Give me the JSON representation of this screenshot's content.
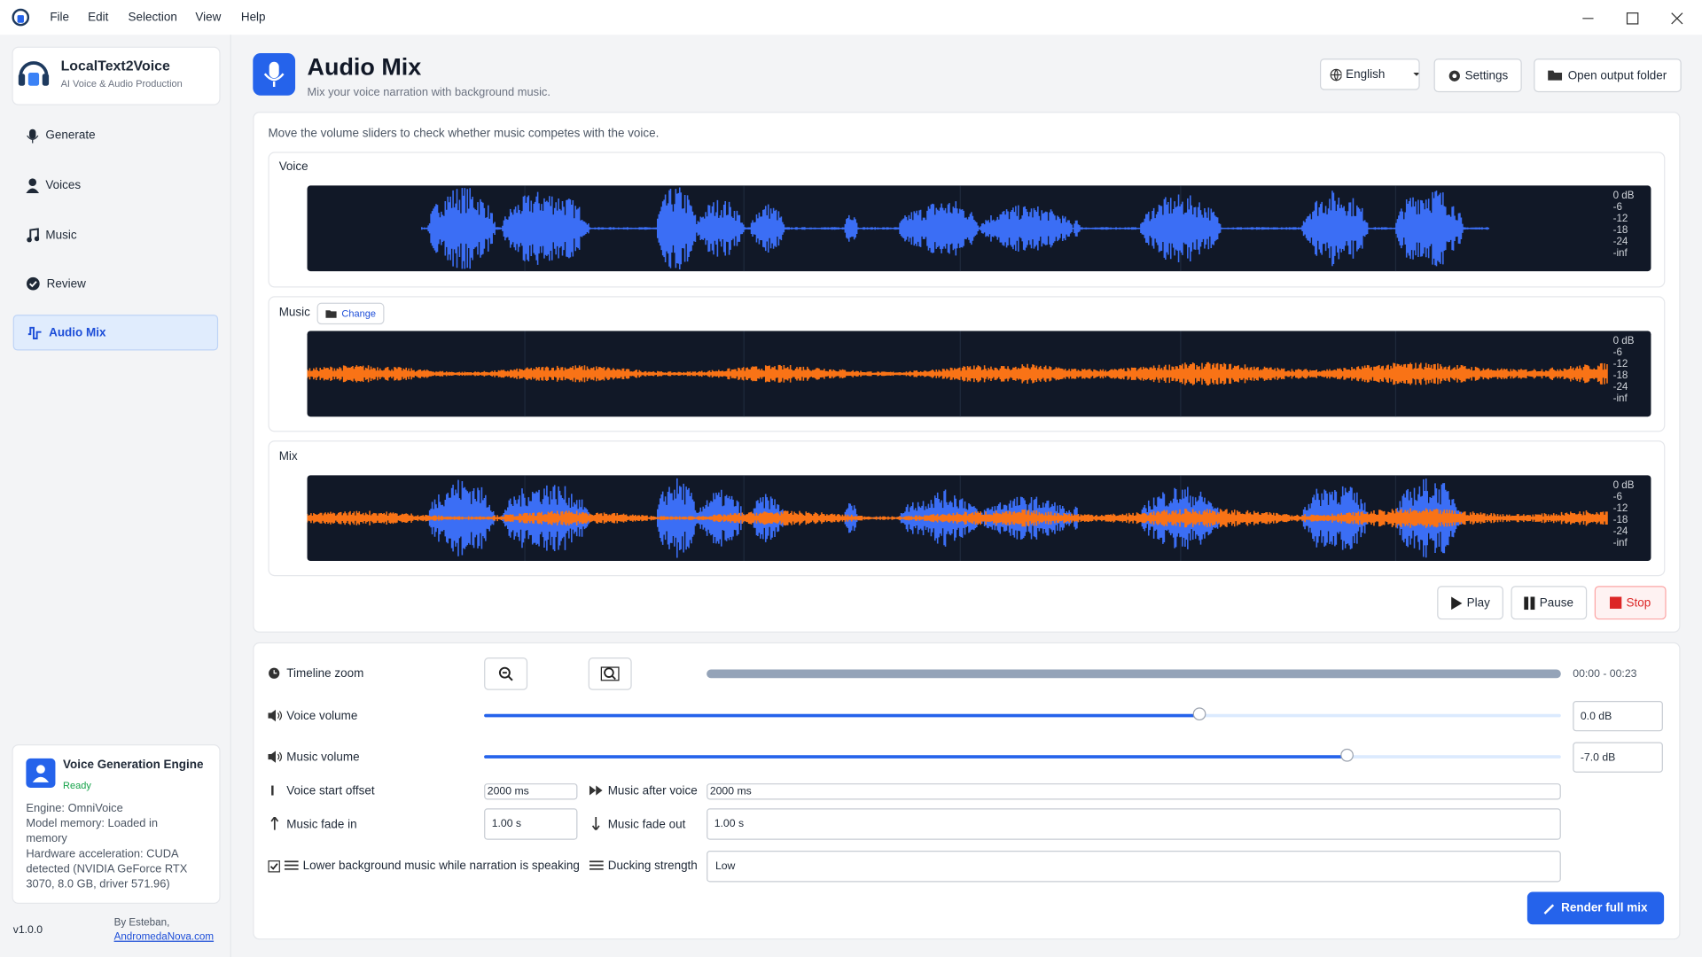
{
  "menu": [
    "File",
    "Edit",
    "Selection",
    "View",
    "Help"
  ],
  "sidebar": {
    "app_name": "LocalText2Voice",
    "app_tagline": "AI Voice & Audio Production",
    "nav": [
      "Generate",
      "Voices",
      "Music",
      "Review",
      "Audio Mix"
    ],
    "engine": {
      "title": "Voice Generation Engine",
      "status": "Ready",
      "details": [
        "Engine: OmniVoice",
        "Model memory: Loaded in memory",
        "Hardware acceleration: CUDA detected (NVIDIA GeForce RTX 3070, 8.0 GB, driver 571.96)"
      ]
    },
    "version": "v1.0.0",
    "credit": "By Esteban,",
    "link": "AndromedaNova.com"
  },
  "header": {
    "title": "Audio Mix",
    "subtitle": "Mix your voice narration with background music.",
    "language": "English",
    "settings": "Settings",
    "open_folder": "Open output folder"
  },
  "waveforms": {
    "hint": "Move the volume sliders to check whether music competes with the voice.",
    "db_scale": [
      "0 dB",
      "-6",
      "-12",
      "-18",
      "-24",
      "-inf"
    ],
    "tracks": [
      {
        "label": "Voice"
      },
      {
        "label": "Music",
        "action": "Change"
      },
      {
        "label": "Mix"
      }
    ]
  },
  "transport": [
    "Play",
    "Pause",
    "Stop"
  ],
  "controls": {
    "timeline_zoom": "Timeline zoom",
    "time_range": "00:00 - 00:23",
    "voice_volume": {
      "label": "Voice volume",
      "value": "0.0 dB"
    },
    "music_volume": {
      "label": "Music volume",
      "value": "-7.0 dB"
    },
    "voice_start_offset": {
      "label": "Voice start offset",
      "value": "2000 ms"
    },
    "music_after_voice": {
      "label": "Music after voice",
      "value": "2000 ms"
    },
    "music_fade_in": {
      "label": "Music fade in",
      "value": "1.00 s"
    },
    "music_fade_out": {
      "label": "Music fade out",
      "value": "1.00 s"
    },
    "ducking": "Lower background music while narration is speaking",
    "ducking_strength": {
      "label": "Ducking strength",
      "value": "Low"
    },
    "render": "Render full mix"
  }
}
